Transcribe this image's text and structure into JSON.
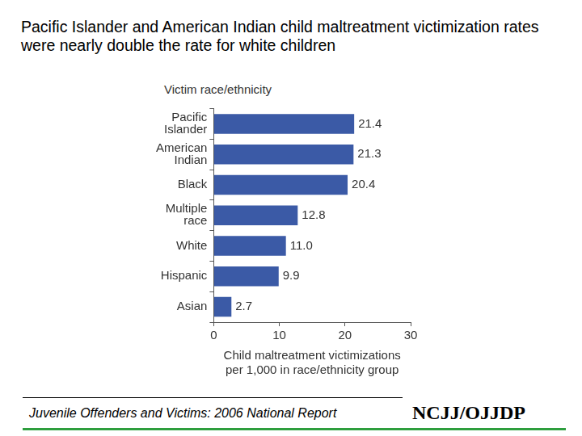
{
  "chart_data": {
    "type": "bar",
    "orientation": "horizontal",
    "title": "Pacific Islander and American Indian child maltreatment victimization rates were nearly double the rate for white children",
    "ylabel": "Victim race/ethnicity",
    "xlabel": [
      "Child maltreatment victimizations",
      "per 1,000 in race/ethnicity group"
    ],
    "categories": [
      "Pacific Islander",
      "American Indian",
      "Black",
      "Multiple race",
      "White",
      "Hispanic",
      "Asian"
    ],
    "values": [
      21.4,
      21.3,
      20.4,
      12.8,
      11.0,
      9.9,
      2.7
    ],
    "value_labels": [
      "21.4",
      "21.3",
      "20.4",
      "12.8",
      "11.0",
      "9.9",
      "2.7"
    ],
    "data_labels": true,
    "color": "#3b5aa6",
    "xlim": [
      0,
      30
    ],
    "xticks": [
      0,
      10,
      20,
      30
    ],
    "grid": false,
    "source": "Juvenile Offenders and Victims: 2006 National Report",
    "logo": "NCJJ/OJJDP"
  }
}
